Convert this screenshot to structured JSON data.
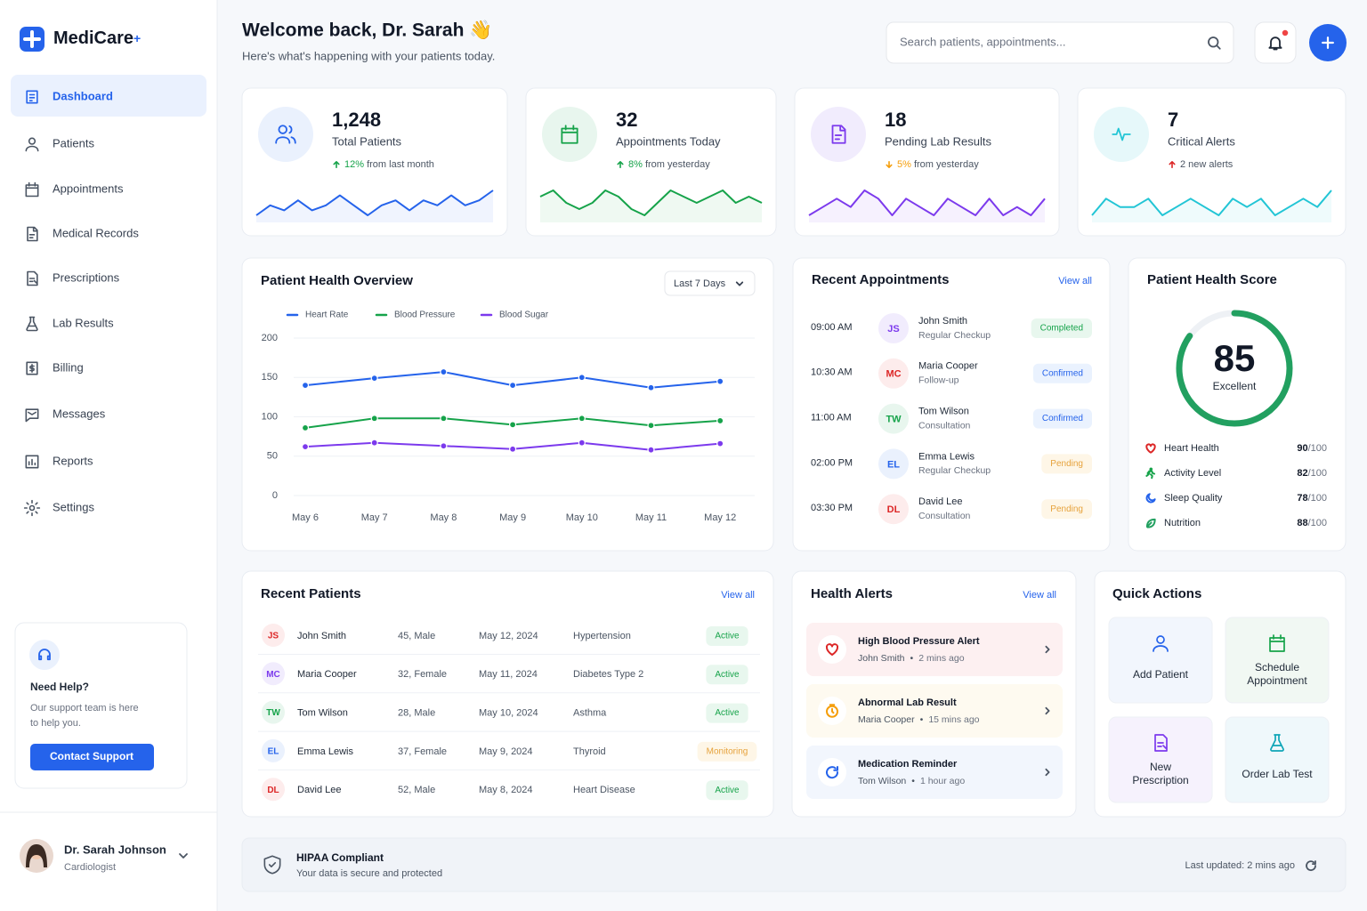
{
  "brand": {
    "name": "MediCare",
    "mark": "+"
  },
  "nav": [
    "Dashboard",
    "Patients",
    "Appointments",
    "Medical Records",
    "Prescriptions",
    "Lab Results",
    "Billing",
    "Messages",
    "Reports",
    "Settings"
  ],
  "help": {
    "title": "Need Help?",
    "text_line1": "Our support team is here",
    "text_line2": "to help you.",
    "button": "Contact Support"
  },
  "user": {
    "name": "Dr. Sarah Johnson",
    "role": "Cardiologist"
  },
  "header": {
    "title": "Welcome back, Dr. Sarah 👋",
    "subtitle": "Here's what's happening with your patients today.",
    "search_placeholder": "Search patients, appointments..."
  },
  "stats": [
    {
      "value": "1,248",
      "label": "Total Patients",
      "delta": "12%",
      "change": " from last month",
      "arrow": "up",
      "delta_color": "#16a34a",
      "color": "#2563eb",
      "background": "#eaf1fd",
      "trend": [
        3,
        5,
        4,
        6,
        4,
        5,
        7,
        5,
        3,
        5,
        6,
        4,
        6,
        5,
        7,
        5,
        6,
        8
      ]
    },
    {
      "value": "32",
      "label": "Appointments Today",
      "delta": "8%",
      "change": " from yesterday",
      "arrow": "up",
      "delta_color": "#16a34a",
      "color": "#16a34a",
      "background": "#e8f6ee",
      "trend": [
        6,
        7,
        5,
        4,
        5,
        7,
        6,
        4,
        3,
        5,
        7,
        6,
        5,
        6,
        7,
        5,
        6,
        5
      ]
    },
    {
      "value": "18",
      "label": "Pending Lab Results",
      "delta": "5%",
      "change": " from yesterday",
      "arrow": "down",
      "delta_color": "#f59e0b",
      "color": "#7c3aed",
      "background": "#f1ecfd",
      "trend": [
        4,
        5,
        6,
        5,
        7,
        6,
        4,
        6,
        5,
        4,
        6,
        5,
        4,
        6,
        4,
        5,
        4,
        6
      ]
    },
    {
      "change": "2 new alerts",
      "value": "7",
      "label": "Critical Alerts",
      "arrow": "up",
      "delta_color": "#dc2626",
      "color": "#22c5d5",
      "background": "#e6f8fa",
      "trend": [
        4,
        6,
        5,
        5,
        6,
        4,
        5,
        6,
        5,
        4,
        6,
        5,
        6,
        4,
        5,
        6,
        5,
        7
      ]
    }
  ],
  "chart_data": {
    "type": "line",
    "title": "Patient Health Overview",
    "filter": "Last 7 Days",
    "categories": [
      "May 6",
      "May 7",
      "May 8",
      "May 9",
      "May 10",
      "May 11",
      "May 12"
    ],
    "series": [
      {
        "name": "Heart Rate",
        "color": "#2563eb",
        "values": [
          140,
          149,
          157,
          140,
          150,
          137,
          145
        ]
      },
      {
        "name": "Blood Pressure",
        "color": "#16a34a",
        "values": [
          86,
          98,
          98,
          90,
          98,
          89,
          95
        ]
      },
      {
        "name": "Blood Sugar",
        "color": "#7c3aed",
        "values": [
          62,
          67,
          63,
          59,
          67,
          58,
          66
        ]
      }
    ],
    "ylim": [
      0,
      200
    ],
    "yticks": [
      0,
      50,
      100,
      150,
      200
    ],
    "grid": true
  },
  "appointments": {
    "title": "Recent Appointments",
    "link": "View all",
    "items": [
      {
        "time": "09:00 AM",
        "initials": "JS",
        "name": "John Smith",
        "type": "Regular Checkup",
        "status": "Completed",
        "color": "#7c3aed",
        "background": "#f1ecfd",
        "status_color": "#16a34a",
        "status_background": "#e8f7ee"
      },
      {
        "time": "10:30 AM",
        "initials": "MC",
        "name": "Maria Cooper",
        "type": "Follow-up",
        "status": "Confirmed",
        "color": "#dc2626",
        "background": "#fdecec",
        "status_color": "#2563eb",
        "status_background": "#eaf2fe"
      },
      {
        "time": "11:00 AM",
        "initials": "TW",
        "name": "Tom Wilson",
        "type": "Consultation",
        "status": "Confirmed",
        "color": "#16a34a",
        "background": "#e8f6ee",
        "status_color": "#2563eb",
        "status_background": "#eaf2fe"
      },
      {
        "time": "02:00 PM",
        "initials": "EL",
        "name": "Emma Lewis",
        "type": "Regular Checkup",
        "status": "Pending",
        "color": "#2563eb",
        "background": "#eaf1fd",
        "status_color": "#e6a23c",
        "status_background": "#fef6e7"
      },
      {
        "time": "03:30 PM",
        "initials": "DL",
        "name": "David Lee",
        "type": "Consultation",
        "status": "Pending",
        "color": "#dc2626",
        "background": "#fdecec",
        "status_color": "#e6a23c",
        "status_background": "#fef6e7"
      }
    ]
  },
  "health_score": {
    "title": "Patient Health Score",
    "score": 85,
    "score_range": [
      0,
      100
    ],
    "rating": "Excellent",
    "color": "#22a060",
    "suffix": "/100",
    "metrics": [
      {
        "name": "Heart Health",
        "value": 90,
        "color": "#dc2626"
      },
      {
        "name": "Activity Level",
        "value": 82,
        "color": "#16a34a"
      },
      {
        "name": "Sleep Quality",
        "value": 78,
        "color": "#2563eb"
      },
      {
        "name": "Nutrition",
        "value": 88,
        "color": "#22a060"
      }
    ]
  },
  "patients": {
    "title": "Recent Patients",
    "link": "View all",
    "rows": [
      {
        "initials": "JS",
        "name": "John Smith",
        "age_gender": "45, Male",
        "date": "May 12, 2024",
        "condition": "Hypertension",
        "status": "Active",
        "color": "#dc2626",
        "background": "#fdecec",
        "status_color": "#16a34a",
        "status_background": "#e8f7ee"
      },
      {
        "initials": "MC",
        "name": "Maria Cooper",
        "age_gender": "32, Female",
        "date": "May 11, 2024",
        "condition": "Diabetes Type 2",
        "status": "Active",
        "color": "#7c3aed",
        "background": "#f1ecfd",
        "status_color": "#16a34a",
        "status_background": "#e8f7ee"
      },
      {
        "initials": "TW",
        "name": "Tom Wilson",
        "age_gender": "28, Male",
        "date": "May 10, 2024",
        "condition": "Asthma",
        "status": "Active",
        "color": "#16a34a",
        "background": "#e8f6ee",
        "status_color": "#16a34a",
        "status_background": "#e8f7ee"
      },
      {
        "initials": "EL",
        "name": "Emma Lewis",
        "age_gender": "37, Female",
        "date": "May 9, 2024",
        "condition": "Thyroid",
        "status": "Monitoring",
        "color": "#2563eb",
        "background": "#eaf1fd",
        "status_color": "#e6a23c",
        "status_background": "#fef6e7"
      },
      {
        "initials": "DL",
        "name": "David Lee",
        "age_gender": "52, Male",
        "date": "May 8, 2024",
        "condition": "Heart Disease",
        "status": "Active",
        "color": "#dc2626",
        "background": "#fdecec",
        "status_color": "#16a34a",
        "status_background": "#e8f7ee"
      }
    ]
  },
  "alerts": {
    "title": "Health Alerts",
    "link": "View all",
    "items": [
      {
        "title": "High Blood Pressure Alert",
        "patient": "John Smith",
        "time": "2 mins ago",
        "color": "#dc2626",
        "background": "#fdf0f1"
      },
      {
        "title": "Abnormal Lab Result",
        "patient": "Maria Cooper",
        "time": "15 mins ago",
        "color": "#f59e0b",
        "background": "#fefaf0"
      },
      {
        "title": "Medication Reminder",
        "patient": "Tom Wilson",
        "time": "1 hour ago",
        "color": "#2563eb",
        "background": "#f2f6fd"
      }
    ]
  },
  "quick_actions": {
    "title": "Quick Actions",
    "items": [
      {
        "label": "Add Patient",
        "color": "#2563eb",
        "background": "#f2f6fd"
      },
      {
        "label": "Schedule Appointment",
        "color": "#16a34a",
        "background": "#f1f8f3"
      },
      {
        "label": "New Prescription",
        "color": "#7c3aed",
        "background": "#f6f2fd"
      },
      {
        "label": "Order Lab Test",
        "color": "#0ea5b7",
        "background": "#eff8fb"
      }
    ]
  },
  "footer": {
    "title": "HIPAA Compliant",
    "subtitle": "Your data is secure and protected",
    "updated": "Last updated: 2 mins ago"
  }
}
